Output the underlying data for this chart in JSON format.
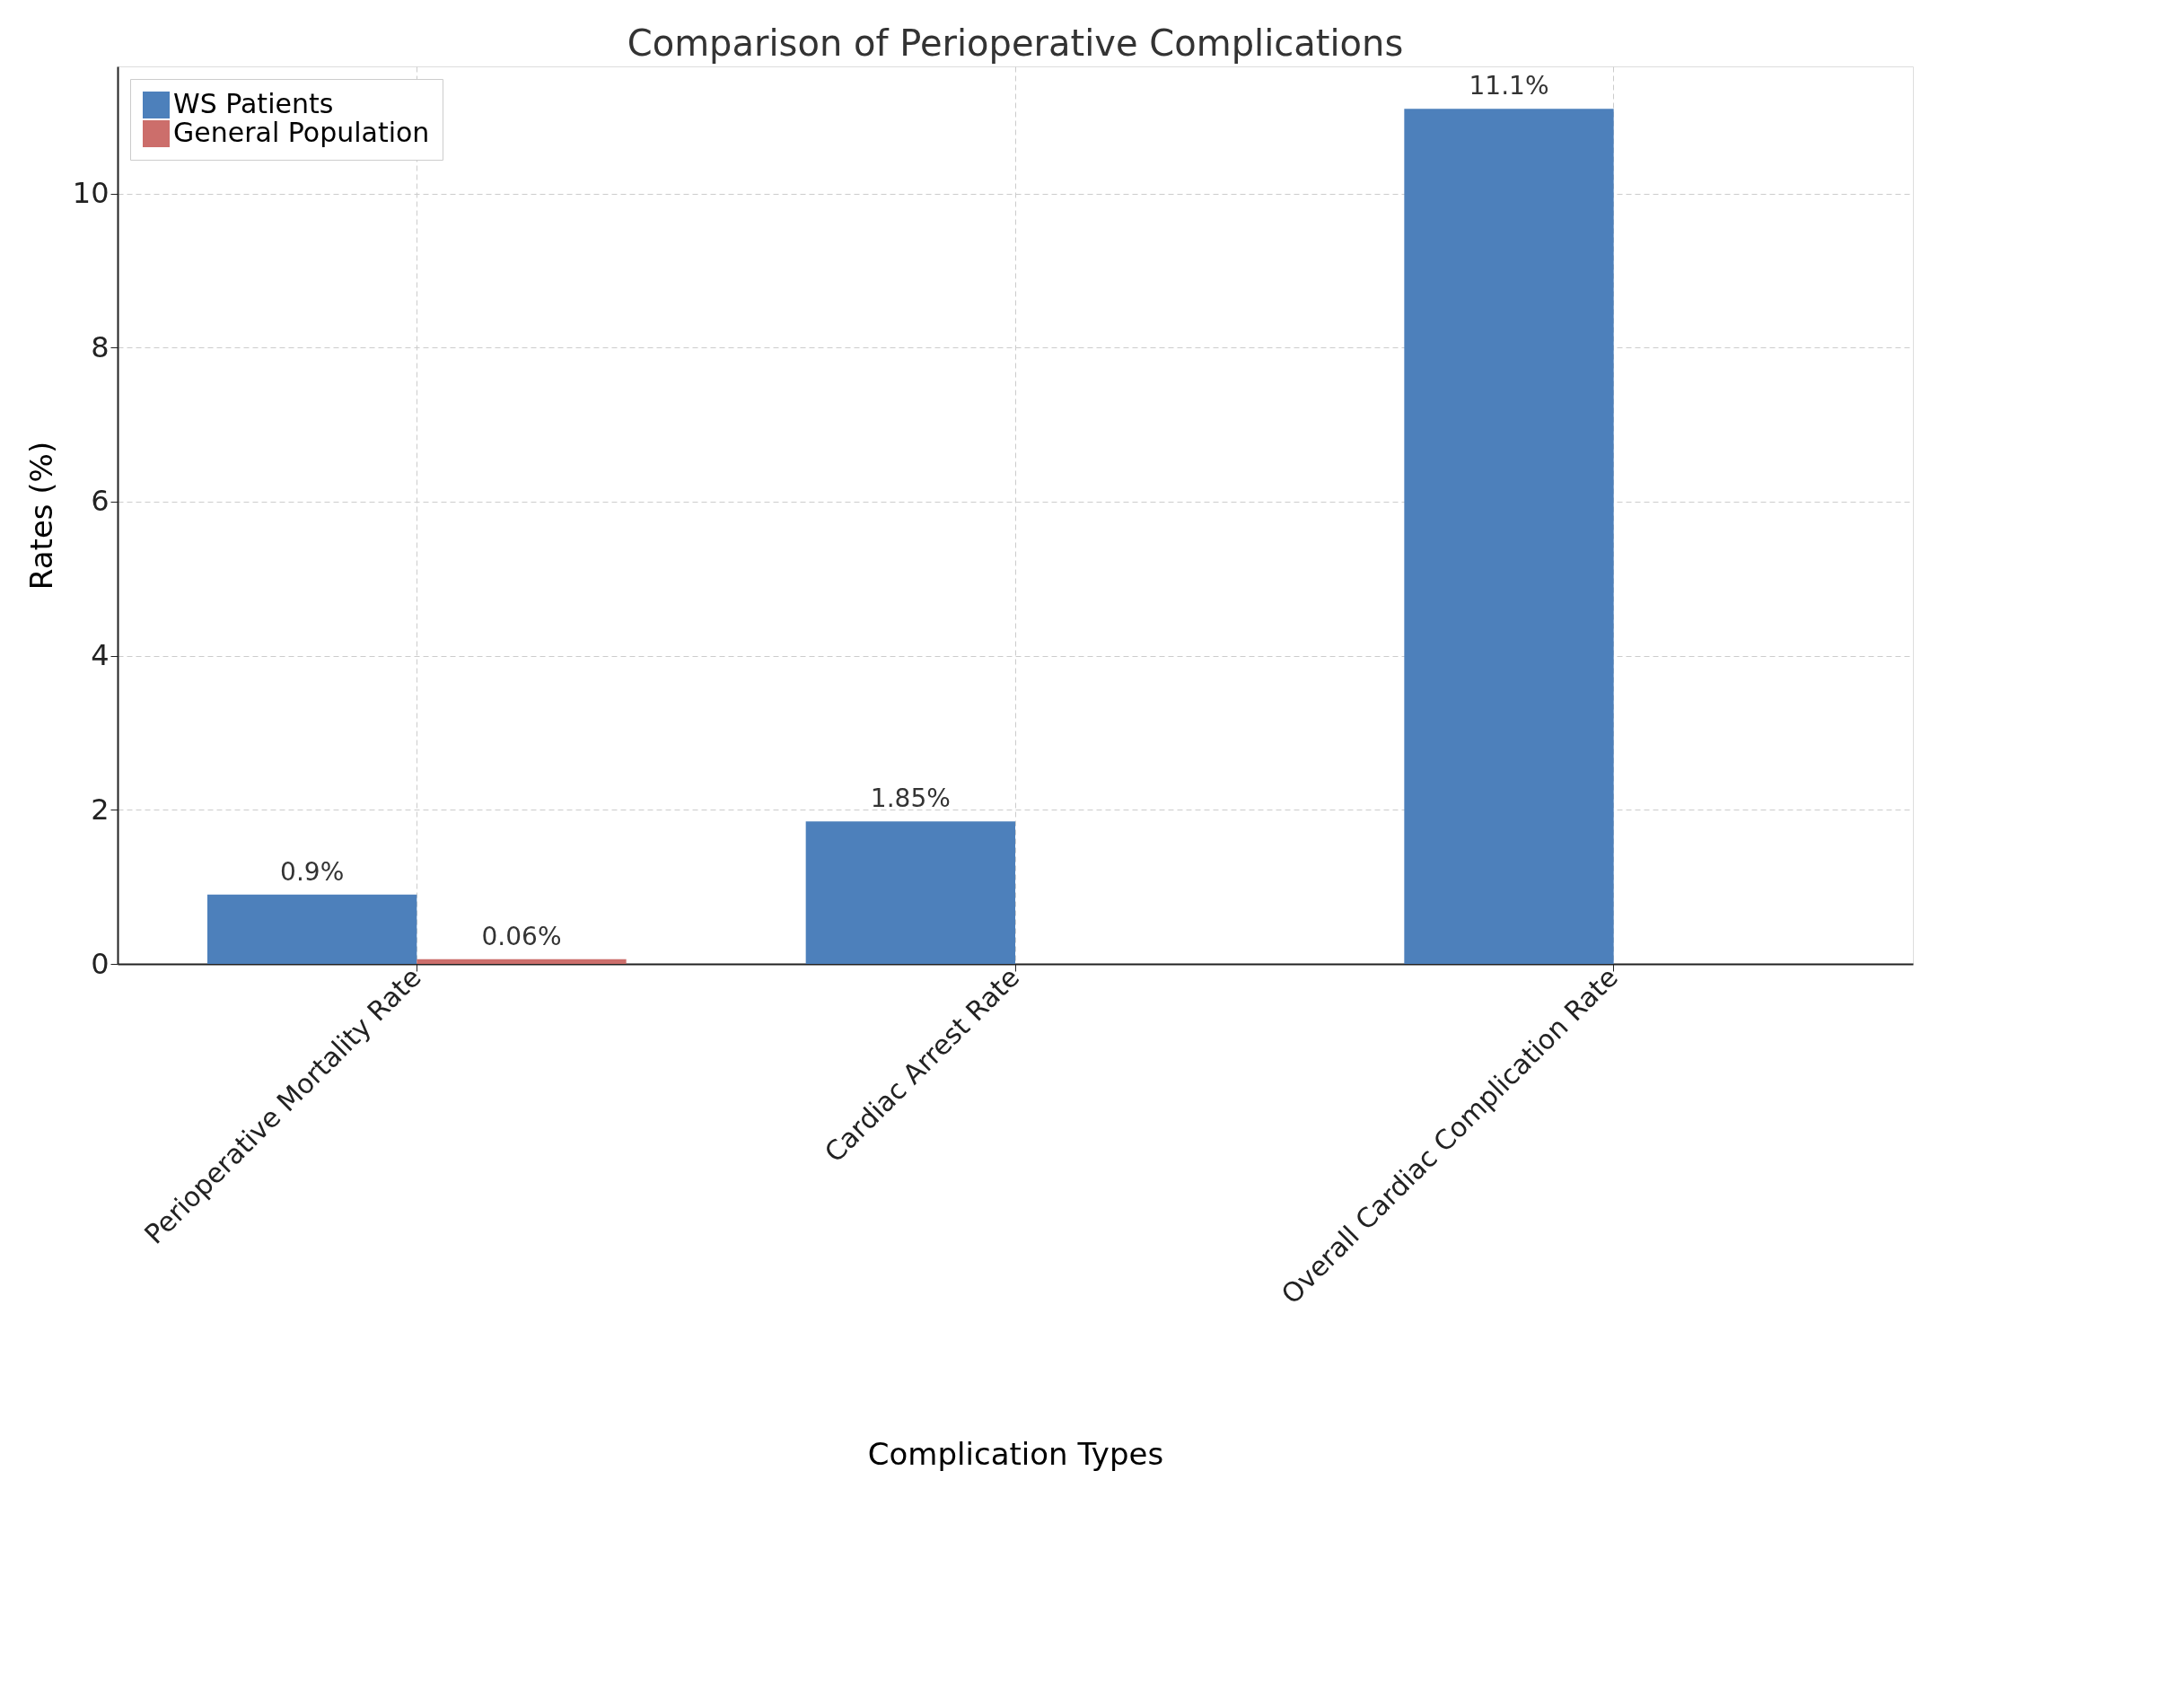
{
  "chart_data": {
    "type": "bar",
    "title": "Comparison of Perioperative Complications",
    "xlabel": "Complication Types",
    "ylabel": "Rates (%)",
    "categories": [
      "Perioperative Mortality Rate",
      "Cardiac Arrest Rate",
      "Overall Cardiac Complication Rate"
    ],
    "series": [
      {
        "name": "WS Patients",
        "color": "#4d80bb",
        "values": [
          0.9,
          1.85,
          11.1
        ],
        "value_labels": [
          "0.9%",
          "1.85%",
          "11.1%"
        ]
      },
      {
        "name": "General Population",
        "color": "#cc6e6b",
        "values": [
          0.06,
          null,
          null
        ],
        "value_labels": [
          "0.06%",
          null,
          null
        ]
      }
    ],
    "ylim": [
      0,
      11.65
    ],
    "yticks": [
      0,
      2,
      4,
      6,
      8,
      10
    ],
    "grid": true,
    "legend": "top left"
  }
}
